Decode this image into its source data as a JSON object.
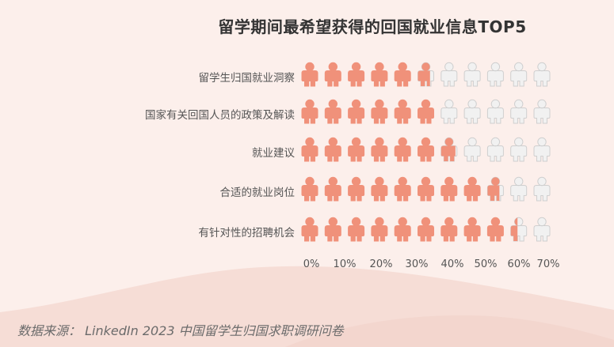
{
  "chart_data": {
    "type": "pictograph",
    "title": "留学期间最希望获得的回国就业信息TOP5",
    "categories": [
      "留学生归国就业洞察",
      "国家有关回国人员的政策及解读",
      "就业建议",
      "合适的就业岗位",
      "有针对性的招聘机会"
    ],
    "values": [
      36.6,
      38.3,
      43.8,
      55.6,
      60
    ],
    "x_ticks": [
      "0%",
      "10%",
      "20%",
      "30%",
      "40%",
      "50%",
      "60%",
      "70%"
    ],
    "xlim": [
      0,
      70
    ],
    "icons_per_row": 11,
    "colors": {
      "filled": "#f0917a",
      "empty": "#f1f1f1",
      "empty_stroke": "#cfcfcf"
    }
  },
  "footer": {
    "source_label": "数据来源：",
    "source_text": "LinkedIn 2023 中国留学生归国求职调研问卷"
  }
}
